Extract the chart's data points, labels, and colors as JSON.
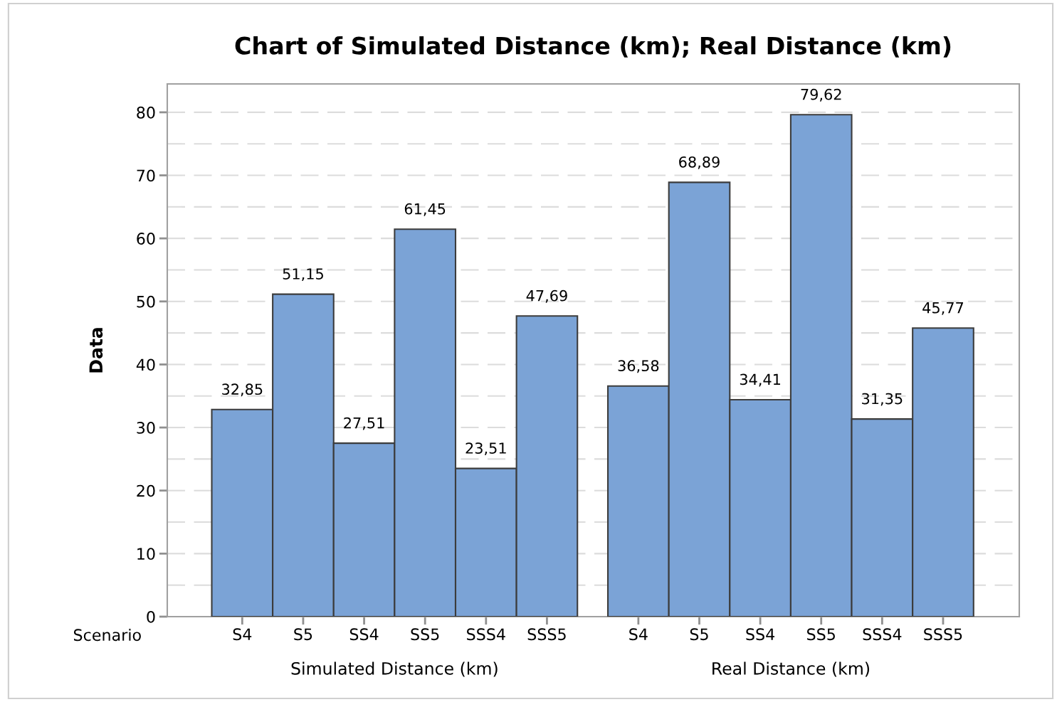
{
  "chart_data": {
    "type": "bar",
    "title": "Chart of Simulated Distance (km); Real Distance (km)",
    "ylabel": "Data",
    "categories": [
      "S4",
      "S5",
      "SS4",
      "SS5",
      "SSS4",
      "SSS5",
      "S4",
      "S5",
      "SS4",
      "SS5",
      "SSS4",
      "SSS5"
    ],
    "values": [
      32.85,
      51.15,
      27.51,
      61.45,
      23.51,
      47.69,
      36.58,
      68.89,
      34.41,
      79.62,
      31.35,
      45.77
    ],
    "value_labels": [
      "32,85",
      "51,15",
      "27,51",
      "61,45",
      "23,51",
      "47,69",
      "36,58",
      "68,89",
      "34,41",
      "79,62",
      "31,35",
      "45,77"
    ],
    "color": "#7ba3d6",
    "annotations": [
      "Simulated Distance (km)",
      "Real Distance (km)",
      "Scenario"
    ],
    "ylim": [
      0,
      84.5
    ],
    "yticks": [
      0,
      10,
      20,
      30,
      40,
      50,
      60,
      70,
      80
    ],
    "grid": "y"
  }
}
